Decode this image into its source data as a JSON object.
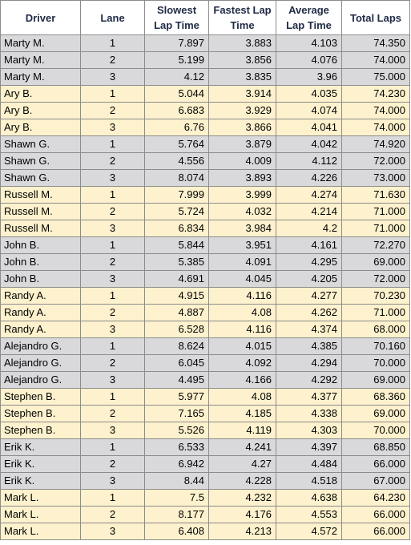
{
  "headers": {
    "driver": "Driver",
    "lane": "Lane",
    "slowest_1": "Slowest",
    "slowest_2": "Lap Time",
    "fastest_1": "Fastest Lap",
    "fastest_2": "Time",
    "average_1": "Average",
    "average_2": "Lap Time",
    "total": "Total Laps"
  },
  "colors": {
    "gray_band": "#d9d9dc",
    "yellow_band": "#fdf2cd",
    "header_text": "#1f2a44",
    "grid": "#8c8c8c"
  },
  "rows": [
    {
      "driver": "Marty M.",
      "lane": "1",
      "slowest": "7.897",
      "fastest": "3.883",
      "average": "4.103",
      "total": "74.350",
      "band": "gray"
    },
    {
      "driver": "Marty M.",
      "lane": "2",
      "slowest": "5.199",
      "fastest": "3.856",
      "average": "4.076",
      "total": "74.000",
      "band": "gray"
    },
    {
      "driver": "Marty M.",
      "lane": "3",
      "slowest": "4.12",
      "fastest": "3.835",
      "average": "3.96",
      "total": "75.000",
      "band": "gray"
    },
    {
      "driver": "Ary B.",
      "lane": "1",
      "slowest": "5.044",
      "fastest": "3.914",
      "average": "4.035",
      "total": "74.230",
      "band": "yellow"
    },
    {
      "driver": "Ary B.",
      "lane": "2",
      "slowest": "6.683",
      "fastest": "3.929",
      "average": "4.074",
      "total": "74.000",
      "band": "yellow"
    },
    {
      "driver": "Ary B.",
      "lane": "3",
      "slowest": "6.76",
      "fastest": "3.866",
      "average": "4.041",
      "total": "74.000",
      "band": "yellow"
    },
    {
      "driver": "Shawn G.",
      "lane": "1",
      "slowest": "5.764",
      "fastest": "3.879",
      "average": "4.042",
      "total": "74.920",
      "band": "gray"
    },
    {
      "driver": "Shawn G.",
      "lane": "2",
      "slowest": "4.556",
      "fastest": "4.009",
      "average": "4.112",
      "total": "72.000",
      "band": "gray"
    },
    {
      "driver": "Shawn G.",
      "lane": "3",
      "slowest": "8.074",
      "fastest": "3.893",
      "average": "4.226",
      "total": "73.000",
      "band": "gray"
    },
    {
      "driver": "Russell M.",
      "lane": "1",
      "slowest": "7.999",
      "fastest": "3.999",
      "average": "4.274",
      "total": "71.630",
      "band": "yellow"
    },
    {
      "driver": "Russell M.",
      "lane": "2",
      "slowest": "5.724",
      "fastest": "4.032",
      "average": "4.214",
      "total": "71.000",
      "band": "yellow"
    },
    {
      "driver": "Russell M.",
      "lane": "3",
      "slowest": "6.834",
      "fastest": "3.984",
      "average": "4.2",
      "total": "71.000",
      "band": "yellow"
    },
    {
      "driver": "John B.",
      "lane": "1",
      "slowest": "5.844",
      "fastest": "3.951",
      "average": "4.161",
      "total": "72.270",
      "band": "gray"
    },
    {
      "driver": "John B.",
      "lane": "2",
      "slowest": "5.385",
      "fastest": "4.091",
      "average": "4.295",
      "total": "69.000",
      "band": "gray"
    },
    {
      "driver": "John B.",
      "lane": "3",
      "slowest": "4.691",
      "fastest": "4.045",
      "average": "4.205",
      "total": "72.000",
      "band": "gray"
    },
    {
      "driver": "Randy A.",
      "lane": "1",
      "slowest": "4.915",
      "fastest": "4.116",
      "average": "4.277",
      "total": "70.230",
      "band": "yellow"
    },
    {
      "driver": "Randy A.",
      "lane": "2",
      "slowest": "4.887",
      "fastest": "4.08",
      "average": "4.262",
      "total": "71.000",
      "band": "yellow"
    },
    {
      "driver": "Randy A.",
      "lane": "3",
      "slowest": "6.528",
      "fastest": "4.116",
      "average": "4.374",
      "total": "68.000",
      "band": "yellow"
    },
    {
      "driver": "Alejandro G.",
      "lane": "1",
      "slowest": "8.624",
      "fastest": "4.015",
      "average": "4.385",
      "total": "70.160",
      "band": "gray"
    },
    {
      "driver": "Alejandro G.",
      "lane": "2",
      "slowest": "6.045",
      "fastest": "4.092",
      "average": "4.294",
      "total": "70.000",
      "band": "gray"
    },
    {
      "driver": "Alejandro G.",
      "lane": "3",
      "slowest": "4.495",
      "fastest": "4.166",
      "average": "4.292",
      "total": "69.000",
      "band": "gray"
    },
    {
      "driver": "Stephen B.",
      "lane": "1",
      "slowest": "5.977",
      "fastest": "4.08",
      "average": "4.377",
      "total": "68.360",
      "band": "yellow"
    },
    {
      "driver": "Stephen B.",
      "lane": "2",
      "slowest": "7.165",
      "fastest": "4.185",
      "average": "4.338",
      "total": "69.000",
      "band": "yellow"
    },
    {
      "driver": "Stephen B.",
      "lane": "3",
      "slowest": "5.526",
      "fastest": "4.119",
      "average": "4.303",
      "total": "70.000",
      "band": "yellow"
    },
    {
      "driver": "Erik K.",
      "lane": "1",
      "slowest": "6.533",
      "fastest": "4.241",
      "average": "4.397",
      "total": "68.850",
      "band": "gray"
    },
    {
      "driver": "Erik K.",
      "lane": "2",
      "slowest": "6.942",
      "fastest": "4.27",
      "average": "4.484",
      "total": "66.000",
      "band": "gray"
    },
    {
      "driver": "Erik K.",
      "lane": "3",
      "slowest": "8.44",
      "fastest": "4.228",
      "average": "4.518",
      "total": "67.000",
      "band": "gray"
    },
    {
      "driver": "Mark L.",
      "lane": "1",
      "slowest": "7.5",
      "fastest": "4.232",
      "average": "4.638",
      "total": "64.230",
      "band": "yellow"
    },
    {
      "driver": "Mark L.",
      "lane": "2",
      "slowest": "8.177",
      "fastest": "4.176",
      "average": "4.553",
      "total": "66.000",
      "band": "yellow"
    },
    {
      "driver": "Mark L.",
      "lane": "3",
      "slowest": "6.408",
      "fastest": "4.213",
      "average": "4.572",
      "total": "66.000",
      "band": "yellow"
    }
  ]
}
